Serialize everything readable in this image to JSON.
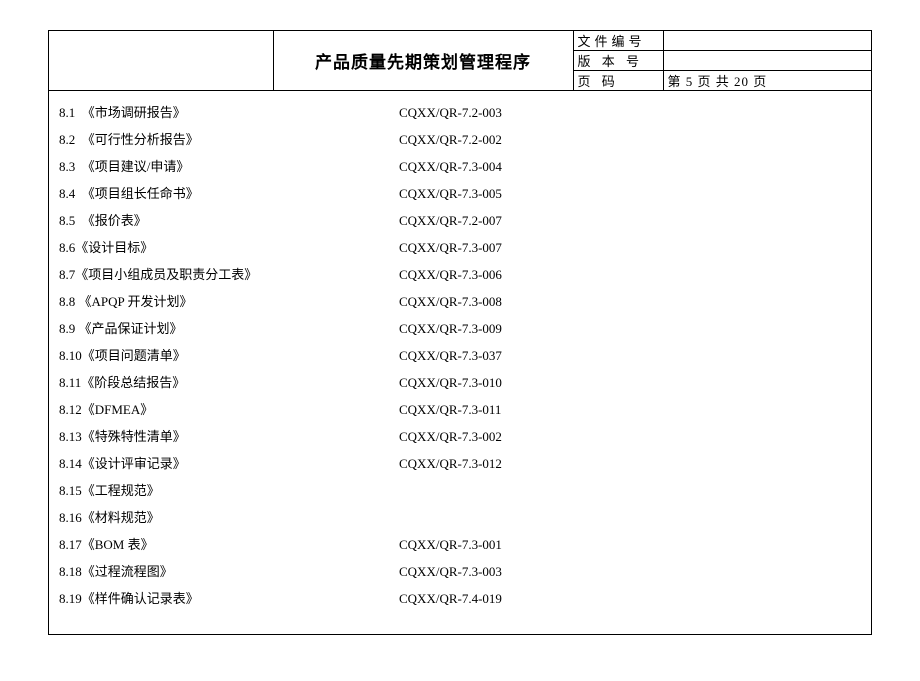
{
  "header": {
    "title": "产品质量先期策划管理程序",
    "rows": [
      {
        "label": "文件编号",
        "value": ""
      },
      {
        "label": "版 本 号",
        "value": ""
      },
      {
        "label": "页    码",
        "value": "第 5 页  共 20 页"
      }
    ]
  },
  "records": [
    {
      "num": "8.1",
      "name": "《市场调研报告》",
      "code": "CQXX/QR-7.2-003",
      "pad": "  "
    },
    {
      "num": "8.2",
      "name": "《可行性分析报告》",
      "code": "CQXX/QR-7.2-002",
      "pad": "  "
    },
    {
      "num": "8.3",
      "name": "《项目建议/申请》",
      "code": "CQXX/QR-7.3-004",
      "pad": "  "
    },
    {
      "num": "8.4",
      "name": "《项目组长任命书》",
      "code": "CQXX/QR-7.3-005",
      "pad": "  "
    },
    {
      "num": "8.5",
      "name": "《报价表》",
      "code": "CQXX/QR-7.2-007",
      "pad": "  "
    },
    {
      "num": "8.6",
      "name": "《设计目标》",
      "code": "CQXX/QR-7.3-007",
      "pad": ""
    },
    {
      "num": "8.7",
      "name": "《项目小组成员及职责分工表》",
      "code": "CQXX/QR-7.3-006",
      "pad": ""
    },
    {
      "num": "8.8",
      "name": "《APQP 开发计划》",
      "code": "CQXX/QR-7.3-008",
      "pad": " "
    },
    {
      "num": "8.9",
      "name": "《产品保证计划》",
      "code": "CQXX/QR-7.3-009",
      "pad": " "
    },
    {
      "num": "8.10",
      "name": "《项目问题清单》",
      "code": "CQXX/QR-7.3-037",
      "pad": ""
    },
    {
      "num": "8.11",
      "name": "《阶段总结报告》",
      "code": "CQXX/QR-7.3-010",
      "pad": ""
    },
    {
      "num": "8.12",
      "name": "《DFMEA》",
      "code": "CQXX/QR-7.3-011",
      "pad": ""
    },
    {
      "num": "8.13",
      "name": "《特殊特性清单》",
      "code": "CQXX/QR-7.3-002",
      "pad": ""
    },
    {
      "num": "8.14",
      "name": "《设计评审记录》",
      "code": "CQXX/QR-7.3-012",
      "pad": ""
    },
    {
      "num": "8.15",
      "name": "《工程规范》",
      "code": "",
      "pad": ""
    },
    {
      "num": "8.16",
      "name": "《材料规范》",
      "code": "",
      "pad": ""
    },
    {
      "num": "8.17",
      "name": "《BOM 表》",
      "code": "CQXX/QR-7.3-001",
      "pad": ""
    },
    {
      "num": "8.18",
      "name": "《过程流程图》",
      "code": "CQXX/QR-7.3-003",
      "pad": ""
    },
    {
      "num": "8.19",
      "name": "《样件确认记录表》",
      "code": "CQXX/QR-7.4-019",
      "pad": ""
    }
  ]
}
